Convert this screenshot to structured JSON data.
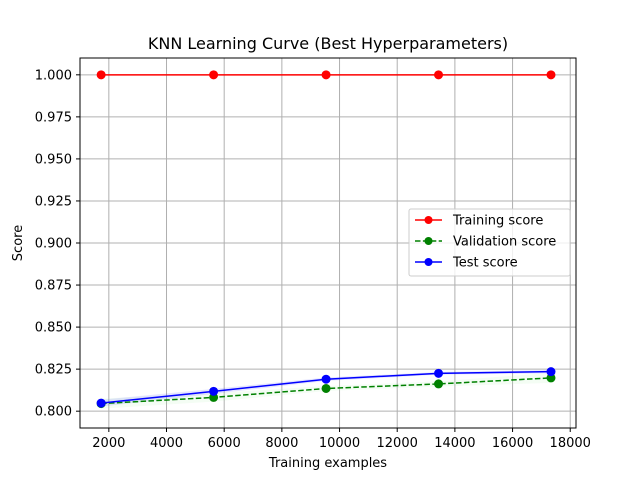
{
  "chart_data": {
    "type": "line",
    "title": "KNN Learning Curve (Best Hyperparameters)",
    "xlabel": "Training examples",
    "ylabel": "Score",
    "xlim": [
      1000,
      18200
    ],
    "ylim": [
      0.79,
      1.01
    ],
    "xticks": [
      2000,
      4000,
      6000,
      8000,
      10000,
      12000,
      14000,
      16000,
      18000
    ],
    "xtick_labels": [
      "2000",
      "4000",
      "6000",
      "8000",
      "10000",
      "12000",
      "14000",
      "16000",
      "18000"
    ],
    "yticks": [
      0.8,
      0.825,
      0.85,
      0.875,
      0.9,
      0.925,
      0.95,
      0.975,
      1.0
    ],
    "ytick_labels": [
      "0.800",
      "0.825",
      "0.850",
      "0.875",
      "0.900",
      "0.925",
      "0.950",
      "0.975",
      "1.000"
    ],
    "grid": true,
    "legend_position": "center-right",
    "x": [
      1733,
      5633,
      9533,
      13433,
      17333
    ],
    "series": [
      {
        "name": "Training score",
        "values": [
          1.0,
          1.0,
          1.0,
          1.0,
          1.0
        ],
        "band": [
          0.0,
          0.0,
          0.0,
          0.0,
          0.0
        ],
        "color": "#ff0000",
        "dash": "solid",
        "band_color": "#ff0000"
      },
      {
        "name": "Validation score",
        "values": [
          0.8045,
          0.8082,
          0.8135,
          0.8162,
          0.8198
        ],
        "band": [
          0.003,
          0.0025,
          0.0015,
          0.0015,
          0.003
        ],
        "color": "#008000",
        "dash": "dashed",
        "band_color": "#90ee90"
      },
      {
        "name": "Test score",
        "values": [
          0.8048,
          0.8118,
          0.819,
          0.8225,
          0.8235
        ],
        "band": [
          0.002,
          0.0015,
          0.001,
          0.0008,
          0.001
        ],
        "color": "#0000ff",
        "dash": "solid",
        "band_color": "#0000ff"
      }
    ]
  }
}
